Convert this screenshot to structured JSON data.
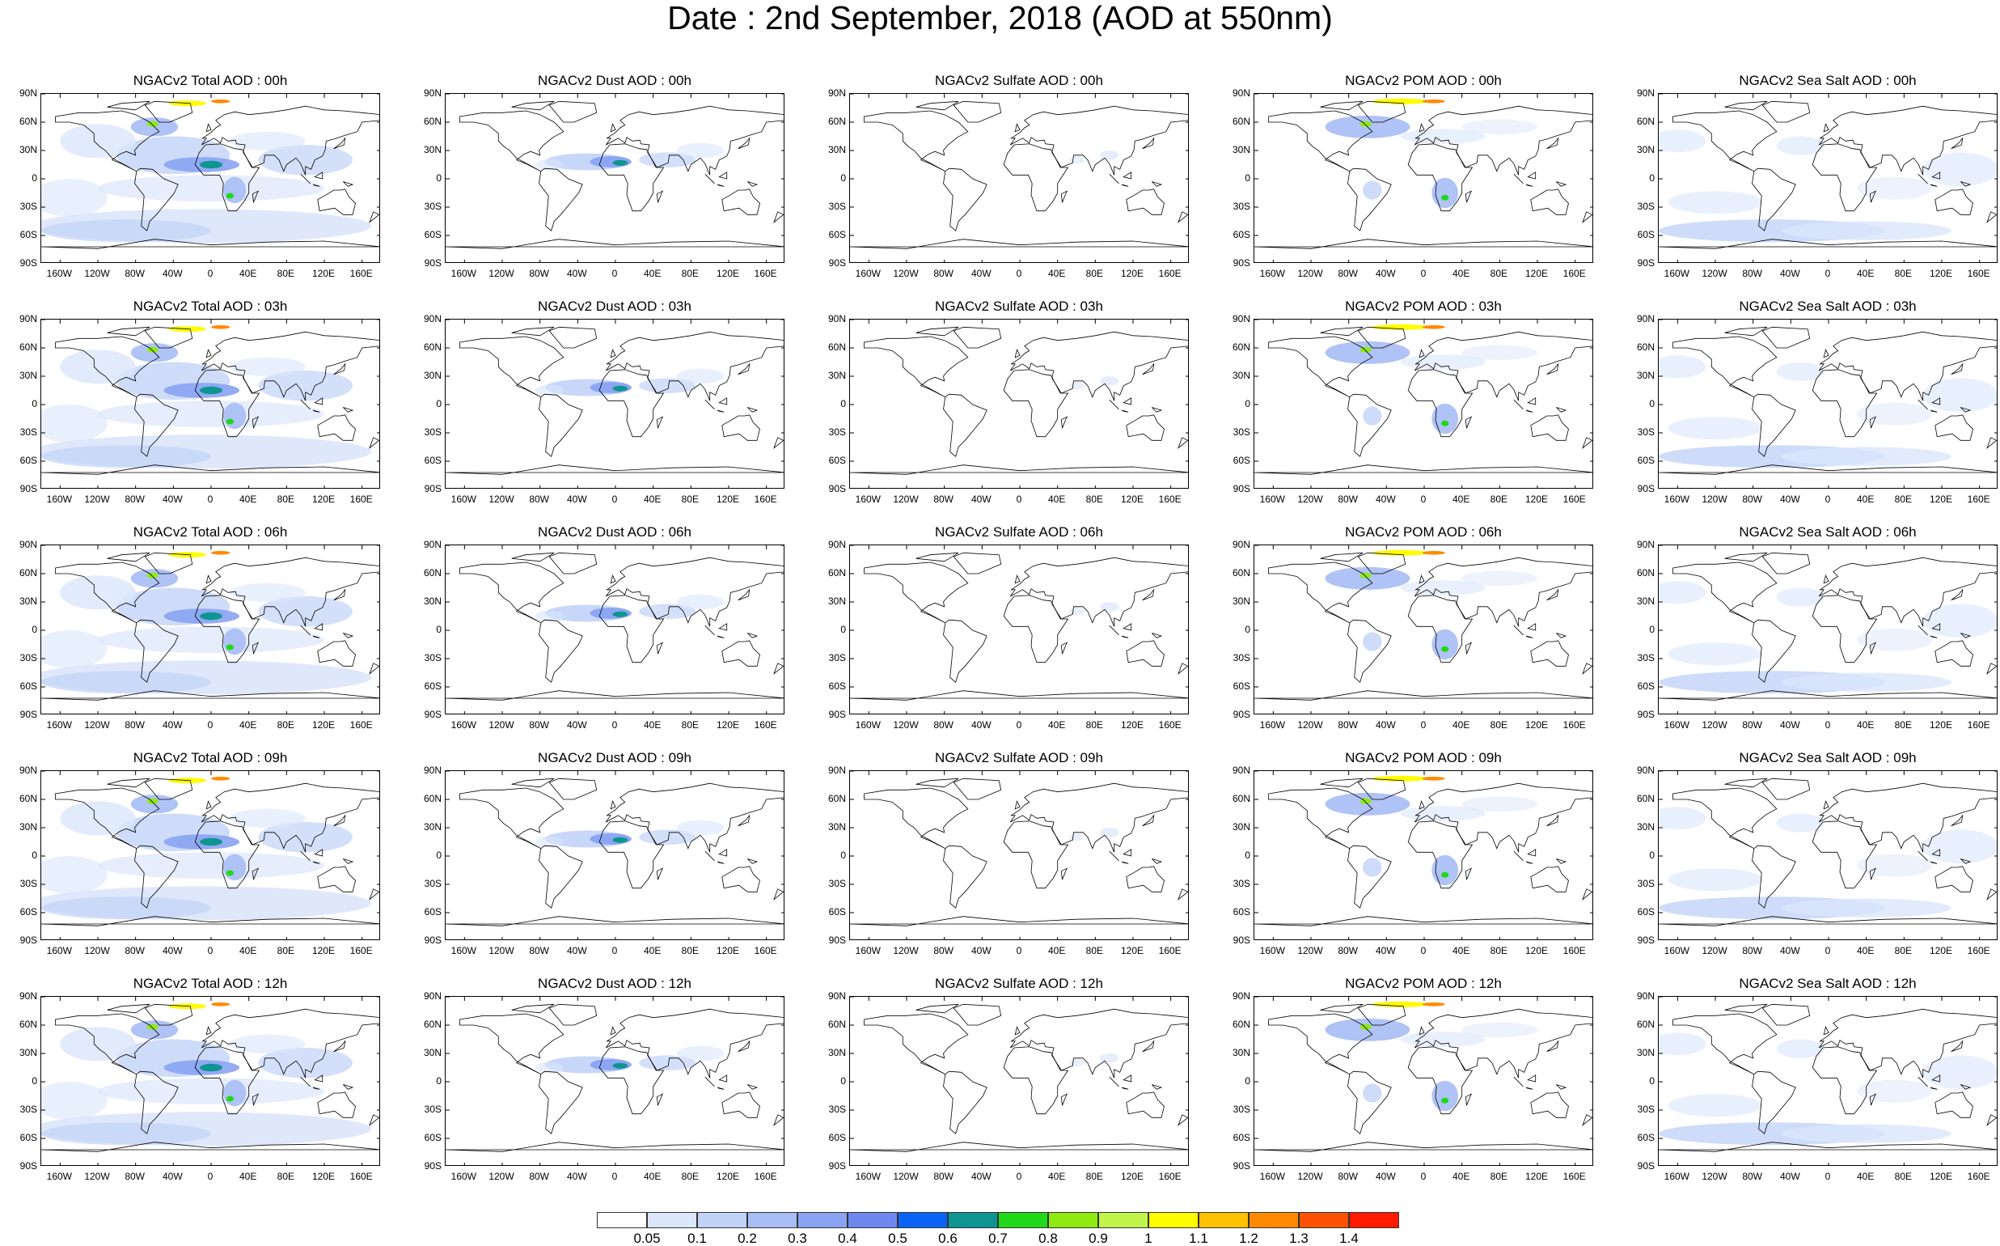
{
  "title": "Date : 2nd September, 2018 (AOD at 550nm)",
  "latitude_labels": [
    "90N",
    "60N",
    "30N",
    "0",
    "30S",
    "60S",
    "90S"
  ],
  "longitude_labels": [
    "160W",
    "120W",
    "80W",
    "40W",
    "0",
    "40E",
    "80E",
    "120E",
    "160E"
  ],
  "panels": [
    [
      "NGACv2 Total AOD : 00h",
      "NGACv2 Dust AOD : 00h",
      "NGACv2 Sulfate AOD : 00h",
      "NGACv2 POM AOD : 00h",
      "NGACv2 Sea Salt AOD : 00h"
    ],
    [
      "NGACv2 Total AOD : 03h",
      "NGACv2 Dust AOD : 03h",
      "NGACv2 Sulfate AOD : 03h",
      "NGACv2 POM AOD : 03h",
      "NGACv2 Sea Salt AOD : 03h"
    ],
    [
      "NGACv2 Total AOD : 06h",
      "NGACv2 Dust AOD : 06h",
      "NGACv2 Sulfate AOD : 06h",
      "NGACv2 POM AOD : 06h",
      "NGACv2 Sea Salt AOD : 06h"
    ],
    [
      "NGACv2 Total AOD : 09h",
      "NGACv2 Dust AOD : 09h",
      "NGACv2 Sulfate AOD : 09h",
      "NGACv2 POM AOD : 09h",
      "NGACv2 Sea Salt  AOD : 09h"
    ],
    [
      "NGACv2 Total AOD :  12h",
      "NGACv2 Dust AOD : 12h",
      "NGACv2 Sulfate AOD : 12h",
      "NGACv2 POM  AOD : 12h",
      "NGACv2 Sea Salt  AOD : 12h"
    ]
  ],
  "colorbar": {
    "labels": [
      "0.05",
      "0.1",
      "0.2",
      "0.3",
      "0.4",
      "0.5",
      "0.6",
      "0.7",
      "0.8",
      "0.9",
      "1",
      "1.1",
      "1.2",
      "1.3",
      "1.4"
    ],
    "colors": [
      "#ffffff",
      "#dbe6fb",
      "#c2d3f8",
      "#a7bdf5",
      "#8aa3f2",
      "#6e87ef",
      "#0b63f5",
      "#0f9591",
      "#22d81a",
      "#8eea10",
      "#c2f54c",
      "#fffb00",
      "#ffc100",
      "#ff8a00",
      "#ff5200",
      "#ff1a00"
    ]
  }
}
